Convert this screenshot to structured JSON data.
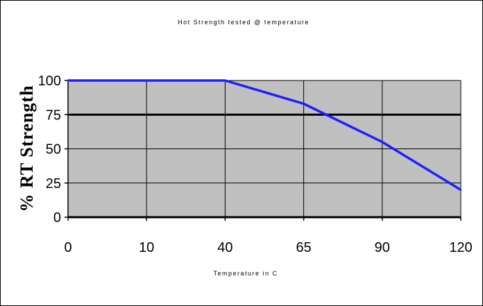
{
  "chart_data": {
    "type": "line",
    "title": "Hot Strength tested @ temperature",
    "xlabel": "Temperature in C",
    "ylabel": "% RT Strength",
    "x_categories": [
      "0",
      "10",
      "40",
      "65",
      "90",
      "120"
    ],
    "ylim": [
      0,
      100
    ],
    "y_ticks": [
      0,
      25,
      50,
      75,
      100
    ],
    "grid": true,
    "legend": "none",
    "series": [
      {
        "x_index": [
          0,
          1,
          2,
          3,
          4,
          5
        ],
        "values": [
          100,
          100,
          100,
          83,
          55,
          20
        ],
        "color": "#1f1fff"
      }
    ],
    "plot_background": "#c0c0c0",
    "grid_color": "#000000"
  }
}
